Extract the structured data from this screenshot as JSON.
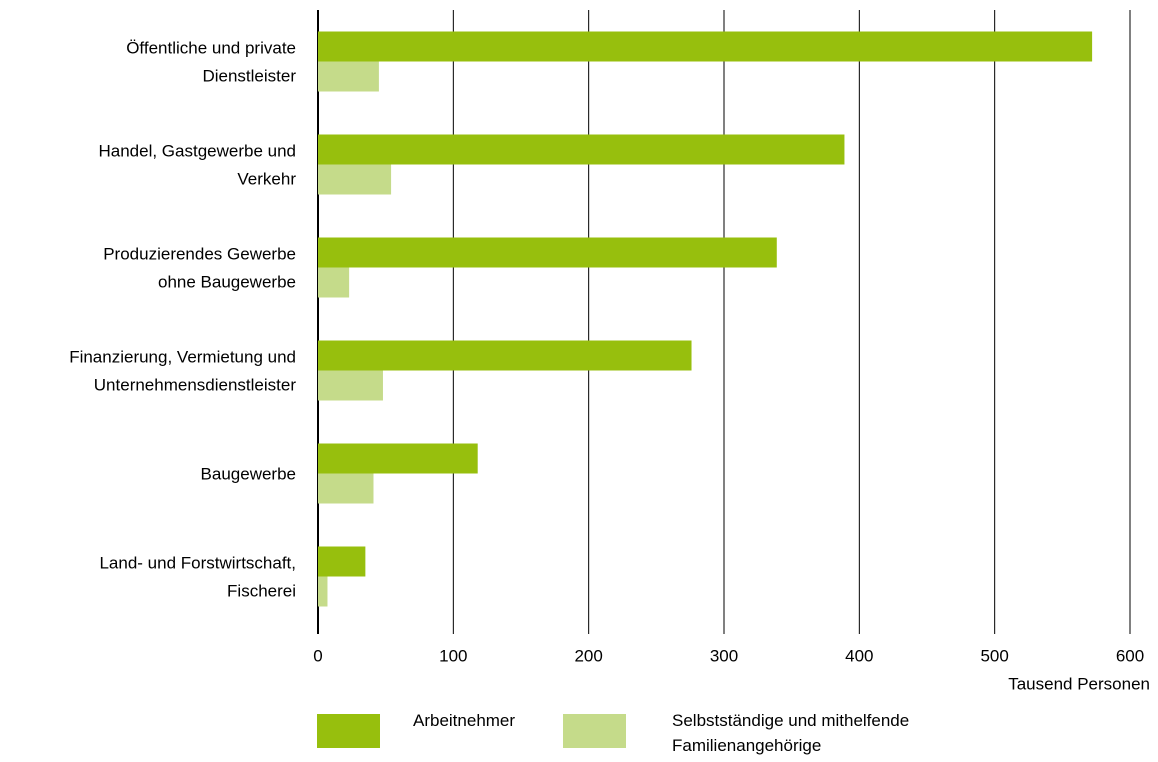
{
  "chart_data": {
    "type": "hbar",
    "categories": [
      [
        "Öffentliche und private",
        "Dienstleister"
      ],
      [
        "Handel, Gastgewerbe und",
        "Verkehr"
      ],
      [
        "Produzierendes Gewerbe",
        "ohne Baugewerbe"
      ],
      [
        "Finanzierung, Vermietung und",
        "Unternehmensdienstleister"
      ],
      [
        "Baugewerbe"
      ],
      [
        "Land- und Forstwirtschaft,",
        "Fischerei"
      ]
    ],
    "series": [
      {
        "name": "Arbeitnehmer",
        "color": "#97bf0d",
        "values": [
          572,
          389,
          339,
          276,
          118,
          35
        ]
      },
      {
        "name": "Selbstständige und mithelfende Familienangehörige",
        "color": "#c5db8a",
        "values": [
          45,
          54,
          23,
          48,
          41,
          7
        ]
      }
    ],
    "xlim": [
      0,
      600
    ],
    "xticks": [
      0,
      100,
      200,
      300,
      400,
      500,
      600
    ],
    "x_label": "Tausend Personen",
    "grid": true
  }
}
